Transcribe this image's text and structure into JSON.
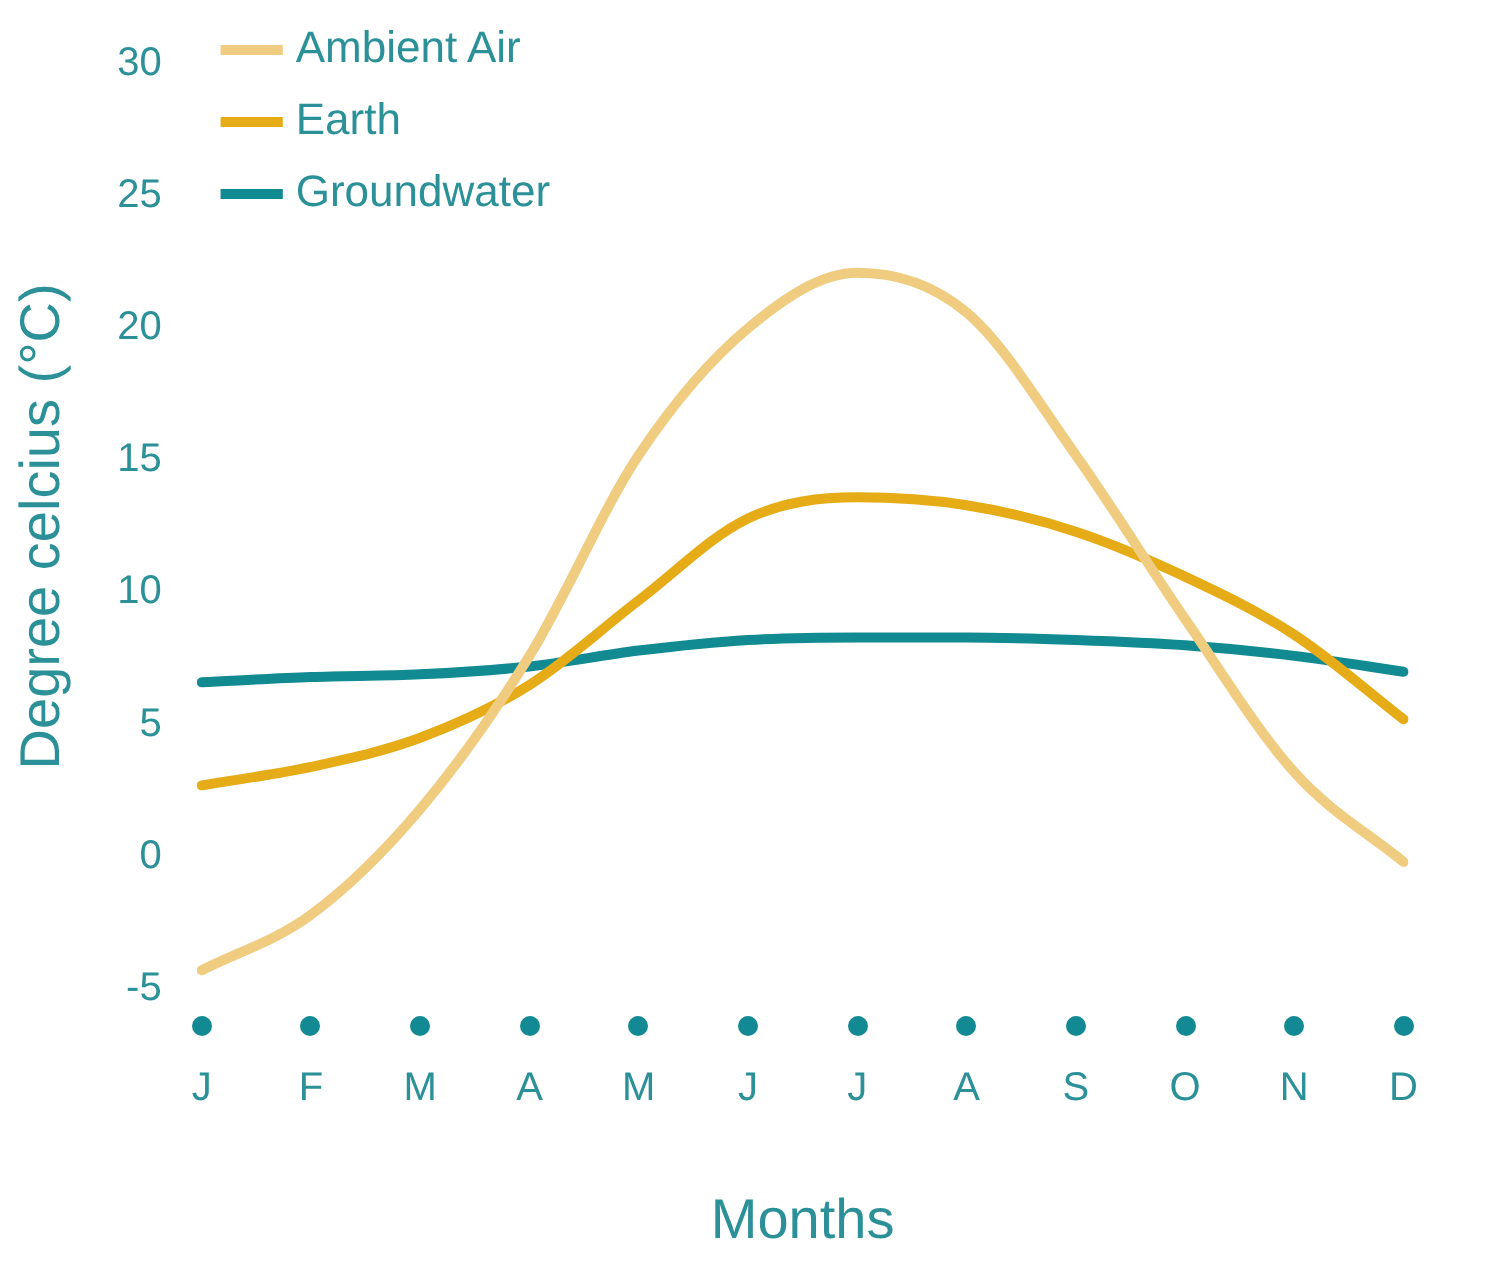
{
  "chart_data": {
    "type": "line",
    "xlabel": "Months",
    "ylabel": "Degree celcius (°C)",
    "categories": [
      "J",
      "F",
      "M",
      "A",
      "M",
      "J",
      "J",
      "A",
      "S",
      "O",
      "N",
      "D"
    ],
    "ylim": [
      -5,
      30
    ],
    "yticks": [
      -5,
      0,
      5,
      10,
      15,
      20,
      25,
      30
    ],
    "legend": "top left",
    "series": [
      {
        "name": "Ambient Air",
        "color": "#f0cc80",
        "values": [
          -4.3,
          -2.2,
          1.8,
          7.6,
          15.2,
          20,
          22.1,
          20.6,
          15.2,
          9,
          3.2,
          -0.2
        ]
      },
      {
        "name": "Earth",
        "color": "#e6ac17",
        "values": [
          2.7,
          3.4,
          4.5,
          6.5,
          9.7,
          12.8,
          13.6,
          13.3,
          12.3,
          10.6,
          8.4,
          5.2
        ]
      },
      {
        "name": "Groundwater",
        "color": "#118a92",
        "values": [
          6.6,
          6.8,
          6.9,
          7.2,
          7.8,
          8.2,
          8.3,
          8.3,
          8.2,
          8,
          7.6,
          7
        ]
      }
    ]
  }
}
